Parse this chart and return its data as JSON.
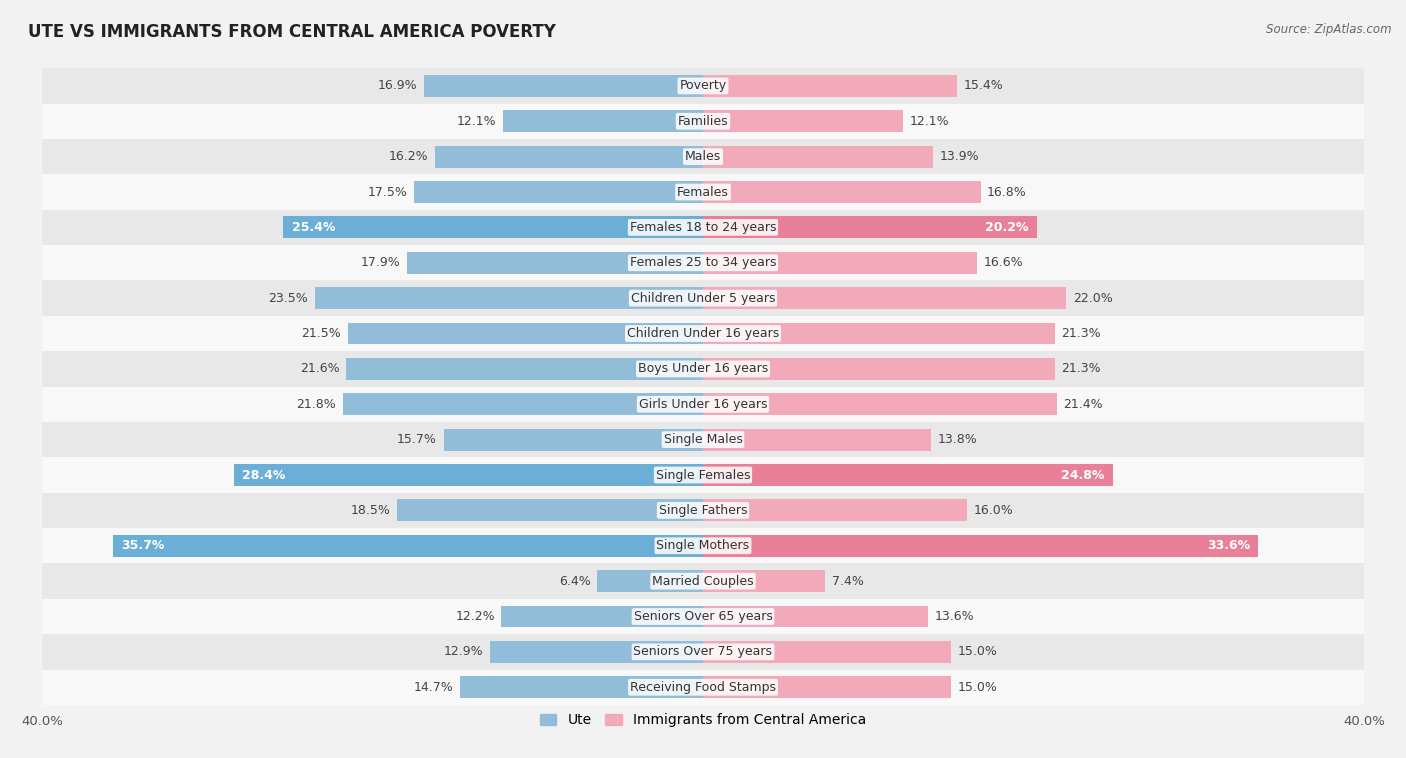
{
  "title": "UTE VS IMMIGRANTS FROM CENTRAL AMERICA POVERTY",
  "source": "Source: ZipAtlas.com",
  "categories": [
    "Poverty",
    "Families",
    "Males",
    "Females",
    "Females 18 to 24 years",
    "Females 25 to 34 years",
    "Children Under 5 years",
    "Children Under 16 years",
    "Boys Under 16 years",
    "Girls Under 16 years",
    "Single Males",
    "Single Females",
    "Single Fathers",
    "Single Mothers",
    "Married Couples",
    "Seniors Over 65 years",
    "Seniors Over 75 years",
    "Receiving Food Stamps"
  ],
  "ute_values": [
    16.9,
    12.1,
    16.2,
    17.5,
    25.4,
    17.9,
    23.5,
    21.5,
    21.6,
    21.8,
    15.7,
    28.4,
    18.5,
    35.7,
    6.4,
    12.2,
    12.9,
    14.7
  ],
  "immigrant_values": [
    15.4,
    12.1,
    13.9,
    16.8,
    20.2,
    16.6,
    22.0,
    21.3,
    21.3,
    21.4,
    13.8,
    24.8,
    16.0,
    33.6,
    7.4,
    13.6,
    15.0,
    15.0
  ],
  "ute_color": "#92BDD9",
  "immigrant_color": "#F2AABB",
  "ute_highlight_indices": [
    4,
    11,
    13
  ],
  "immigrant_highlight_indices": [
    4,
    11,
    13
  ],
  "ute_highlight_color": "#6BAED6",
  "immigrant_highlight_color": "#E8809A",
  "background_color": "#f2f2f2",
  "row_bg_even": "#e8e8e8",
  "row_bg_odd": "#f8f8f8",
  "axis_max": 40.0,
  "bar_height": 0.62,
  "label_fontsize": 9.0,
  "category_fontsize": 9.0,
  "title_fontsize": 12,
  "source_fontsize": 8.5,
  "legend_labels": [
    "Ute",
    "Immigrants from Central America"
  ]
}
